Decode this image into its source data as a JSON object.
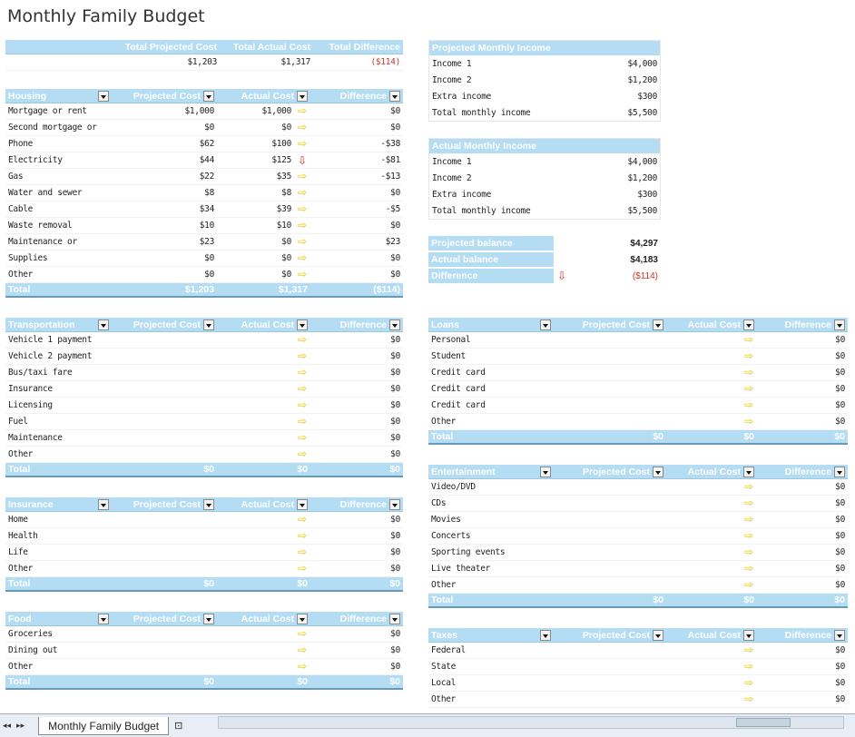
{
  "title": "Monthly Family Budget",
  "summary": {
    "headers": [
      "Total Projected Cost",
      "Total Actual Cost",
      "Total Difference"
    ],
    "values": [
      "$1,203",
      "$1,317",
      "($114)"
    ]
  },
  "col_headers": [
    "Projected Cost",
    "Actual Cost",
    "Difference"
  ],
  "housing": {
    "name": "Housing",
    "rows": [
      [
        "Mortgage or rent",
        "$1,000",
        "$1,000",
        "$0"
      ],
      [
        "Second mortgage or",
        "$0",
        "$0",
        "$0"
      ],
      [
        "Phone",
        "$62",
        "$100",
        "-$38"
      ],
      [
        "Electricity",
        "$44",
        "$125",
        "-$81"
      ],
      [
        "Gas",
        "$22",
        "$35",
        "-$13"
      ],
      [
        "Water and sewer",
        "$8",
        "$8",
        "$0"
      ],
      [
        "Cable",
        "$34",
        "$39",
        "-$5"
      ],
      [
        "Waste removal",
        "$10",
        "$10",
        "$0"
      ],
      [
        "Maintenance or",
        "$23",
        "$0",
        "$23"
      ],
      [
        "Supplies",
        "$0",
        "$0",
        "$0"
      ],
      [
        "Other",
        "$0",
        "$0",
        "$0"
      ]
    ],
    "total": [
      "Total",
      "$1,203",
      "$1,317",
      "($114)"
    ]
  },
  "transportation": {
    "name": "Transportation",
    "rows": [
      [
        "Vehicle 1 payment",
        "",
        "",
        "$0"
      ],
      [
        "Vehicle 2 payment",
        "",
        "",
        "$0"
      ],
      [
        "Bus/taxi fare",
        "",
        "",
        "$0"
      ],
      [
        "Insurance",
        "",
        "",
        "$0"
      ],
      [
        "Licensing",
        "",
        "",
        "$0"
      ],
      [
        "Fuel",
        "",
        "",
        "$0"
      ],
      [
        "Maintenance",
        "",
        "",
        "$0"
      ],
      [
        "Other",
        "",
        "",
        "$0"
      ]
    ],
    "total": [
      "Total",
      "$0",
      "$0",
      "$0"
    ]
  },
  "insurance": {
    "name": "Insurance",
    "rows": [
      [
        "Home",
        "",
        "",
        "$0"
      ],
      [
        "Health",
        "",
        "",
        "$0"
      ],
      [
        "Life",
        "",
        "",
        "$0"
      ],
      [
        "Other",
        "",
        "",
        "$0"
      ]
    ],
    "total": [
      "Total",
      "$0",
      "$0",
      "$0"
    ]
  },
  "food": {
    "name": "Food",
    "rows": [
      [
        "Groceries",
        "",
        "",
        "$0"
      ],
      [
        "Dining out",
        "",
        "",
        "$0"
      ],
      [
        "Other",
        "",
        "",
        "$0"
      ]
    ],
    "total": [
      "Total",
      "$0",
      "$0",
      "$0"
    ]
  },
  "loans": {
    "name": "Loans",
    "rows": [
      [
        "Personal",
        "",
        "",
        "$0"
      ],
      [
        "Student",
        "",
        "",
        "$0"
      ],
      [
        "Credit card",
        "",
        "",
        "$0"
      ],
      [
        "Credit card",
        "",
        "",
        "$0"
      ],
      [
        "Credit card",
        "",
        "",
        "$0"
      ],
      [
        "Other",
        "",
        "",
        "$0"
      ]
    ],
    "total": [
      "Total",
      "$0",
      "$0",
      "$0"
    ]
  },
  "entertainment": {
    "name": "Entertainment",
    "rows": [
      [
        "Video/DVD",
        "",
        "",
        "$0"
      ],
      [
        "CDs",
        "",
        "",
        "$0"
      ],
      [
        "Movies",
        "",
        "",
        "$0"
      ],
      [
        "Concerts",
        "",
        "",
        "$0"
      ],
      [
        "Sporting events",
        "",
        "",
        "$0"
      ],
      [
        "Live theater",
        "",
        "",
        "$0"
      ],
      [
        "Other",
        "",
        "",
        "$0"
      ]
    ],
    "total": [
      "Total",
      "$0",
      "$0",
      "$0"
    ]
  },
  "taxes": {
    "name": "Taxes",
    "rows": [
      [
        "Federal",
        "",
        "",
        "$0"
      ],
      [
        "State",
        "",
        "",
        "$0"
      ],
      [
        "Local",
        "",
        "",
        "$0"
      ],
      [
        "Other",
        "",
        "",
        "$0"
      ]
    ]
  },
  "projected_income": {
    "name": "Projected Monthly Income",
    "rows": [
      [
        "Income 1",
        "$4,000"
      ],
      [
        "Income 2",
        "$1,200"
      ],
      [
        "Extra income",
        "$300"
      ],
      [
        "Total monthly income",
        "$5,500"
      ]
    ]
  },
  "actual_income": {
    "name": "Actual Monthly Income",
    "rows": [
      [
        "Income 1",
        "$4,000"
      ],
      [
        "Income 2",
        "$1,200"
      ],
      [
        "Extra income",
        "$300"
      ],
      [
        "Total monthly income",
        "$5,500"
      ]
    ]
  },
  "balance": {
    "rows": [
      [
        "Projected balance",
        "$4,297"
      ],
      [
        "Actual balance",
        "$4,183"
      ],
      [
        "Difference",
        "($114)"
      ]
    ]
  },
  "sheet_tab": "Monthly Family Budget"
}
